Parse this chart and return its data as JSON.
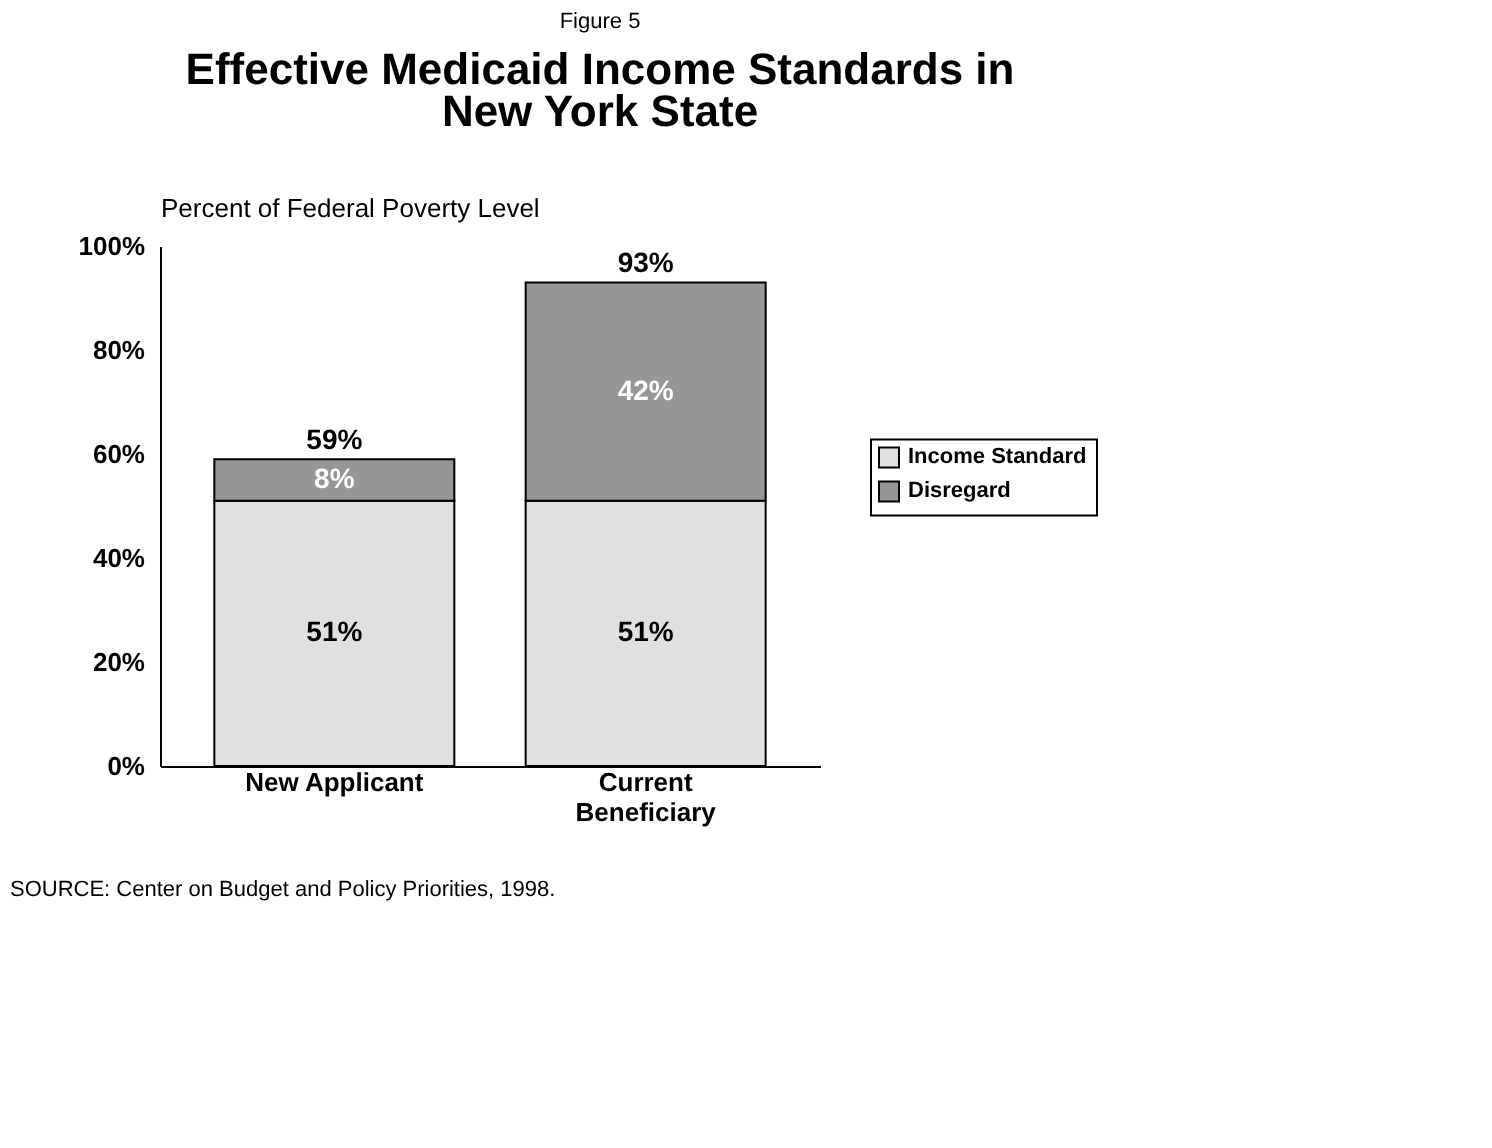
{
  "chart_data": {
    "type": "bar",
    "subtitle": "Figure 5",
    "title": "Effective Medicaid Income Standards in New York State",
    "ylabel": "Percent of Federal Poverty Level",
    "categories": [
      "New Applicant",
      "Current Beneficiary"
    ],
    "stacked": true,
    "series": [
      {
        "name": "Income Standard",
        "color": "#e0e0e0",
        "values": [
          51,
          51
        ],
        "value_labels": [
          "51%",
          "51%"
        ]
      },
      {
        "name": "Disregard",
        "color": "#969696",
        "values": [
          8,
          42
        ],
        "value_labels": [
          "8%",
          "42%"
        ]
      }
    ],
    "totals": [
      "59%",
      "93%"
    ],
    "ylim": [
      0,
      100
    ],
    "yticks": [
      {
        "value": 0,
        "label": "0%"
      },
      {
        "value": 20,
        "label": "20%"
      },
      {
        "value": 40,
        "label": "40%"
      },
      {
        "value": 60,
        "label": "60%"
      },
      {
        "value": 80,
        "label": "80%"
      },
      {
        "value": 100,
        "label": "100%"
      }
    ],
    "grid": false,
    "legend": "right",
    "annotations": [
      "SOURCE:  Center on Budget and Policy Priorities, 1998."
    ]
  }
}
